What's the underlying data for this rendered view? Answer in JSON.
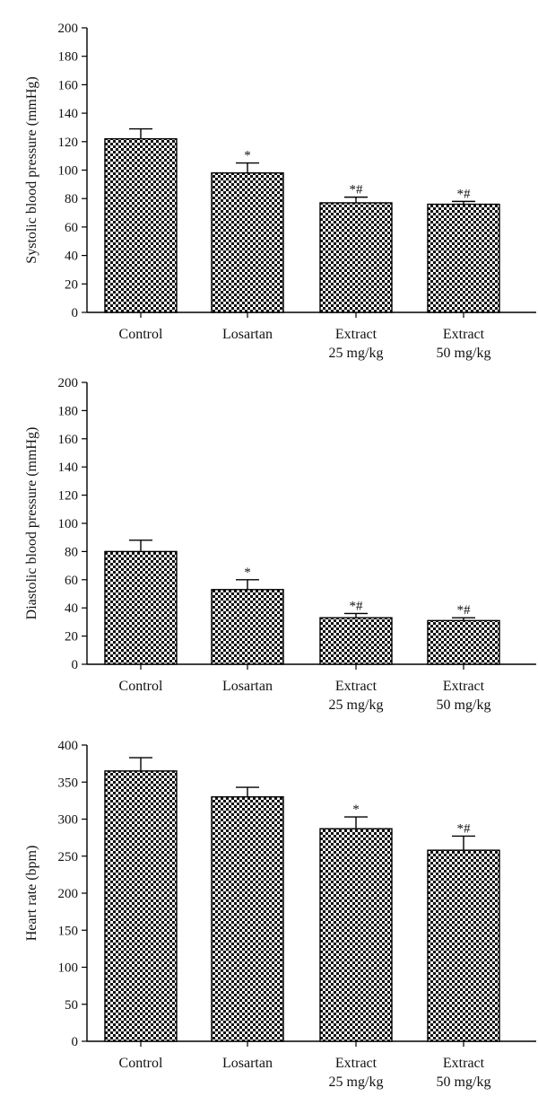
{
  "chart_data": [
    {
      "type": "bar",
      "ylabel": "Systolic blood pressure (mmHg)",
      "ylim": [
        0,
        200
      ],
      "yticks": [
        0,
        20,
        40,
        60,
        80,
        100,
        120,
        140,
        160,
        180,
        200
      ],
      "categories": [
        {
          "line1": "Control",
          "line2": ""
        },
        {
          "line1": "Losartan",
          "line2": ""
        },
        {
          "line1": "Extract",
          "line2": "25 mg/kg"
        },
        {
          "line1": "Extract",
          "line2": "50 mg/kg"
        }
      ],
      "values": [
        122,
        98,
        77,
        76
      ],
      "errors": [
        7,
        7,
        4,
        2
      ],
      "significance": [
        "",
        "*",
        "*#",
        "*#"
      ]
    },
    {
      "type": "bar",
      "ylabel": "Diastolic blood pressure (mmHg)",
      "ylim": [
        0,
        200
      ],
      "yticks": [
        0,
        20,
        40,
        60,
        80,
        100,
        120,
        140,
        160,
        180,
        200
      ],
      "categories": [
        {
          "line1": "Control",
          "line2": ""
        },
        {
          "line1": "Losartan",
          "line2": ""
        },
        {
          "line1": "Extract",
          "line2": "25 mg/kg"
        },
        {
          "line1": "Extract",
          "line2": "50 mg/kg"
        }
      ],
      "values": [
        80,
        53,
        33,
        31
      ],
      "errors": [
        8,
        7,
        3,
        2
      ],
      "significance": [
        "",
        "*",
        "*#",
        "*#"
      ]
    },
    {
      "type": "bar",
      "ylabel": "Heart rate (bpm)",
      "ylim": [
        0,
        400
      ],
      "yticks": [
        0,
        50,
        100,
        150,
        200,
        250,
        300,
        350,
        400
      ],
      "categories": [
        {
          "line1": "Control",
          "line2": ""
        },
        {
          "line1": "Losartan",
          "line2": ""
        },
        {
          "line1": "Extract",
          "line2": "25 mg/kg"
        },
        {
          "line1": "Extract",
          "line2": "50 mg/kg"
        }
      ],
      "values": [
        365,
        330,
        287,
        258
      ],
      "errors": [
        18,
        13,
        16,
        19
      ],
      "significance": [
        "",
        "",
        "*",
        "*#"
      ]
    }
  ]
}
